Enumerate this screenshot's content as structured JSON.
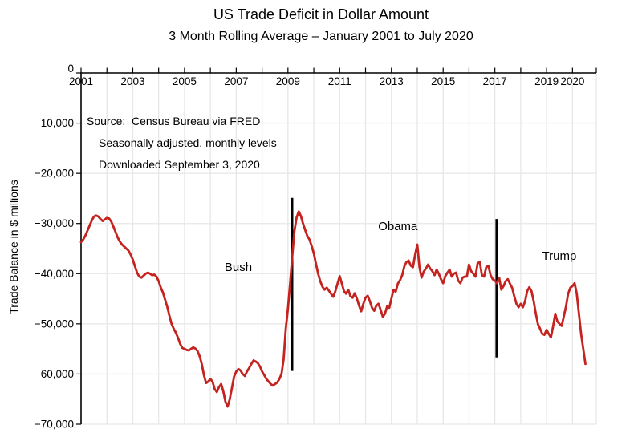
{
  "source_note": {
    "lines": [
      "Source:  Census Bureau via FRED",
      "Seasonally adjusted, monthly levels",
      "Downloaded September 3, 2020"
    ]
  },
  "colors": {
    "line": "#c4231f",
    "divider": "#000000",
    "grid": "#e7e7e7",
    "axis": "#000000",
    "background": "#ffffff",
    "text": "#000000"
  },
  "chart_data": {
    "type": "line",
    "title": "US Trade Deficit in Dollar Amount",
    "subtitle": "3 Month Rolling Average – January 2001 to July 2020",
    "xlabel": "",
    "ylabel": "Trade Balance in $ millions",
    "xlim": [
      2001,
      2020.92
    ],
    "ylim": [
      -70000,
      0
    ],
    "grid": true,
    "legend": "none",
    "x_tick_labels": [
      {
        "year": 2001,
        "label": "2001"
      },
      {
        "year": 2003,
        "label": "2003"
      },
      {
        "year": 2005,
        "label": "2005"
      },
      {
        "year": 2007,
        "label": "2007"
      },
      {
        "year": 2009,
        "label": "2009"
      },
      {
        "year": 2011,
        "label": "2011"
      },
      {
        "year": 2013,
        "label": "2013"
      },
      {
        "year": 2015,
        "label": "2015"
      },
      {
        "year": 2017,
        "label": "2017"
      },
      {
        "year": 2019,
        "label": "2019"
      },
      {
        "year": 2020,
        "label": "2020"
      }
    ],
    "y_ticks": [
      {
        "value": 0,
        "label": "0"
      },
      {
        "value": -10000,
        "label": "−10,000"
      },
      {
        "value": -20000,
        "label": "−20,000"
      },
      {
        "value": -30000,
        "label": "−30,000"
      },
      {
        "value": -40000,
        "label": "−40,000"
      },
      {
        "value": -50000,
        "label": "−50,000"
      },
      {
        "value": -60000,
        "label": "−60,000"
      },
      {
        "value": -70000,
        "label": "−70,000"
      }
    ],
    "series": [
      {
        "name": "US trade balance, 3-month rolling average ($ millions)",
        "color": "#c4231f",
        "start_x": 2001.0,
        "step_x": 0.0833333,
        "values": [
          -33700,
          -33200,
          -32400,
          -31400,
          -30400,
          -29400,
          -28600,
          -28400,
          -28600,
          -29100,
          -29500,
          -29200,
          -28900,
          -29000,
          -29600,
          -30600,
          -31700,
          -32800,
          -33600,
          -34200,
          -34600,
          -35000,
          -35400,
          -36200,
          -37200,
          -38500,
          -39800,
          -40600,
          -40800,
          -40400,
          -40000,
          -39800,
          -40000,
          -40300,
          -40200,
          -40600,
          -41500,
          -42800,
          -43800,
          -45200,
          -46600,
          -48400,
          -50000,
          -51000,
          -51800,
          -52800,
          -54000,
          -54800,
          -55000,
          -55200,
          -55300,
          -55000,
          -54700,
          -54900,
          -55400,
          -56400,
          -58000,
          -60200,
          -61800,
          -61500,
          -61000,
          -61500,
          -63000,
          -63600,
          -62600,
          -62000,
          -63500,
          -65500,
          -66500,
          -65000,
          -62800,
          -60500,
          -59500,
          -59000,
          -59300,
          -60000,
          -60400,
          -59500,
          -58800,
          -58000,
          -57300,
          -57500,
          -57800,
          -58500,
          -59500,
          -60200,
          -61000,
          -61500,
          -62000,
          -62300,
          -62000,
          -61700,
          -61000,
          -60000,
          -57000,
          -51000,
          -47000,
          -42000,
          -36500,
          -31500,
          -28800,
          -27600,
          -28500,
          -30000,
          -31300,
          -32500,
          -33200,
          -34500,
          -36000,
          -38000,
          -40000,
          -41500,
          -42600,
          -43200,
          -42800,
          -43400,
          -44000,
          -44600,
          -43500,
          -42000,
          -40500,
          -42000,
          -43500,
          -44000,
          -43200,
          -44500,
          -44800,
          -43900,
          -45000,
          -46400,
          -47500,
          -46000,
          -44800,
          -44400,
          -45500,
          -46800,
          -47400,
          -46400,
          -46000,
          -47200,
          -48600,
          -48000,
          -46500,
          -46800,
          -45000,
          -43200,
          -43600,
          -42000,
          -41300,
          -40300,
          -38500,
          -37700,
          -37400,
          -38400,
          -38700,
          -36200,
          -34200,
          -38700,
          -40800,
          -39600,
          -39000,
          -38200,
          -39000,
          -39500,
          -40300,
          -39200,
          -40000,
          -41100,
          -41900,
          -40500,
          -39800,
          -39200,
          -40600,
          -40000,
          -39800,
          -41400,
          -41900,
          -40800,
          -40600,
          -40600,
          -38200,
          -39500,
          -40000,
          -40600,
          -37900,
          -37700,
          -40300,
          -40600,
          -38700,
          -38400,
          -40300,
          -41100,
          -41400,
          -41900,
          -40800,
          -43200,
          -42500,
          -41500,
          -41100,
          -42000,
          -42800,
          -44500,
          -46000,
          -46700,
          -46000,
          -46700,
          -45500,
          -43500,
          -42700,
          -43500,
          -45500,
          -48000,
          -50100,
          -51000,
          -52000,
          -52200,
          -51200,
          -52000,
          -52700,
          -50500,
          -48000,
          -49500,
          -50000,
          -50400,
          -48500,
          -46500,
          -44000,
          -42800,
          -42500,
          -41900,
          -44000,
          -48000,
          -52000,
          -55000,
          -58000
        ]
      }
    ],
    "dividers": [
      {
        "name": "bush-obama-transition",
        "x": 2009.16,
        "y_from": -24900,
        "y_to": -59400
      },
      {
        "name": "obama-trump-transition",
        "x": 2017.07,
        "y_from": -29100,
        "y_to": -56700
      }
    ],
    "annotations": [
      {
        "label": "Bush",
        "x": 2007.08,
        "y": -38700
      },
      {
        "label": "Obama",
        "x": 2013.25,
        "y": -30550
      },
      {
        "label": "Trump",
        "x": 2019.49,
        "y": -36450
      }
    ]
  }
}
